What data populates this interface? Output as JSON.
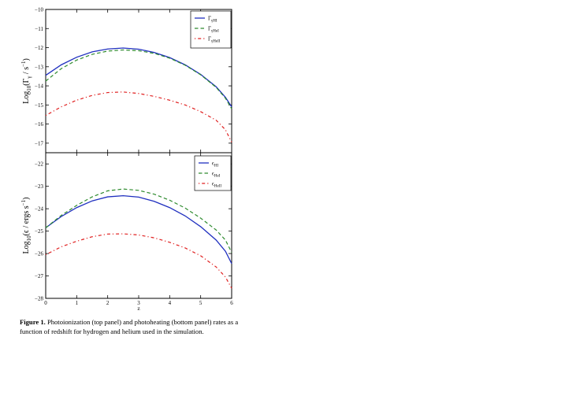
{
  "figure": {
    "caption_label": "Figure 1.",
    "caption_text": "Photoionization (top panel) and photoheating (bottom panel) rates as a function of redshift for hydrogen and helium used in the simulation."
  },
  "colors": {
    "hi": "#1f2fbf",
    "hei": "#2e8b2e",
    "heii": "#e02020"
  },
  "chart_data": [
    {
      "type": "line",
      "panel": "top",
      "ylabel_main": "Log",
      "ylabel_sub": "10",
      "ylabel_expr": "(Γ",
      "ylabel_expr_sub": "γ",
      "ylabel_unit": " / s",
      "ylabel_unit_sup": "−1",
      "ylabel_close": ")",
      "xlim": [
        0,
        6
      ],
      "ylim": [
        -17.5,
        -10
      ],
      "yticks": [
        -10,
        -11,
        -12,
        -13,
        -14,
        -15,
        -16,
        -17
      ],
      "ytick_labels": [
        "−10",
        "−11",
        "−12",
        "−13",
        "−14",
        "−15",
        "−16",
        "−17"
      ],
      "legend_position": "top-right",
      "series": [
        {
          "name": "Γ",
          "name_sub": "γHI",
          "color_key": "hi",
          "style": "solid",
          "x": [
            0,
            0.5,
            1,
            1.5,
            2,
            2.5,
            3,
            3.5,
            4,
            4.5,
            5,
            5.5,
            5.8,
            6
          ],
          "y": [
            -13.45,
            -12.9,
            -12.5,
            -12.22,
            -12.07,
            -12.02,
            -12.08,
            -12.25,
            -12.52,
            -12.9,
            -13.4,
            -14.05,
            -14.6,
            -15.1
          ]
        },
        {
          "name": "Γ",
          "name_sub": "γHeI",
          "color_key": "hei",
          "style": "dashed",
          "x": [
            0,
            0.5,
            1,
            1.5,
            2,
            2.5,
            3,
            3.5,
            4,
            4.5,
            5,
            5.5,
            5.8,
            6
          ],
          "y": [
            -13.75,
            -13.1,
            -12.65,
            -12.35,
            -12.18,
            -12.12,
            -12.16,
            -12.3,
            -12.55,
            -12.92,
            -13.42,
            -14.08,
            -14.65,
            -15.2
          ]
        },
        {
          "name": "Γ",
          "name_sub": "γHeII",
          "color_key": "heii",
          "style": "dashdot",
          "x": [
            0,
            0.5,
            1,
            1.5,
            2,
            2.5,
            3,
            3.5,
            4,
            4.5,
            5,
            5.5,
            5.8,
            6
          ],
          "y": [
            -15.55,
            -15.1,
            -14.75,
            -14.5,
            -14.35,
            -14.32,
            -14.4,
            -14.55,
            -14.75,
            -15.0,
            -15.35,
            -15.8,
            -16.3,
            -16.95
          ]
        }
      ]
    },
    {
      "type": "line",
      "panel": "bottom",
      "ylabel_main": "Log",
      "ylabel_sub": "10",
      "ylabel_expr": "(ϵ",
      "ylabel_expr_sub": "",
      "ylabel_unit": " / ergs s",
      "ylabel_unit_sup": "−1",
      "ylabel_close": ")",
      "xlabel": "z",
      "xlim": [
        0,
        6
      ],
      "ylim": [
        -28,
        -21.5
      ],
      "xticks": [
        0,
        1,
        2,
        3,
        4,
        5,
        6
      ],
      "xtick_labels": [
        "0",
        "1",
        "2",
        "3",
        "4",
        "5",
        "6"
      ],
      "yticks": [
        -22,
        -23,
        -24,
        -25,
        -26,
        -27,
        -28
      ],
      "ytick_labels": [
        "−22",
        "−23",
        "−24",
        "−25",
        "−26",
        "−27",
        "−28"
      ],
      "legend_position": "top-right",
      "series": [
        {
          "name": "ϵ",
          "name_sub": "HI",
          "color_key": "hi",
          "style": "solid",
          "x": [
            0,
            0.5,
            1,
            1.5,
            2,
            2.5,
            3,
            3.5,
            4,
            4.5,
            5,
            5.5,
            5.8,
            6
          ],
          "y": [
            -24.85,
            -24.35,
            -23.95,
            -23.65,
            -23.47,
            -23.42,
            -23.48,
            -23.67,
            -23.95,
            -24.32,
            -24.8,
            -25.4,
            -25.9,
            -26.45
          ]
        },
        {
          "name": "ϵ",
          "name_sub": "HeI",
          "color_key": "hei",
          "style": "dashed",
          "x": [
            0,
            0.5,
            1,
            1.5,
            2,
            2.5,
            3,
            3.5,
            4,
            4.5,
            5,
            5.5,
            5.8,
            6
          ],
          "y": [
            -24.85,
            -24.3,
            -23.85,
            -23.47,
            -23.2,
            -23.12,
            -23.18,
            -23.35,
            -23.62,
            -23.97,
            -24.42,
            -24.95,
            -25.4,
            -25.95
          ]
        },
        {
          "name": "ϵ",
          "name_sub": "HeII",
          "color_key": "heii",
          "style": "dashdot",
          "x": [
            0,
            0.5,
            1,
            1.5,
            2,
            2.5,
            3,
            3.5,
            4,
            4.5,
            5,
            5.5,
            5.8,
            6
          ],
          "y": [
            -26.05,
            -25.7,
            -25.45,
            -25.25,
            -25.13,
            -25.12,
            -25.17,
            -25.3,
            -25.5,
            -25.75,
            -26.1,
            -26.6,
            -27.05,
            -27.55
          ]
        }
      ]
    }
  ]
}
